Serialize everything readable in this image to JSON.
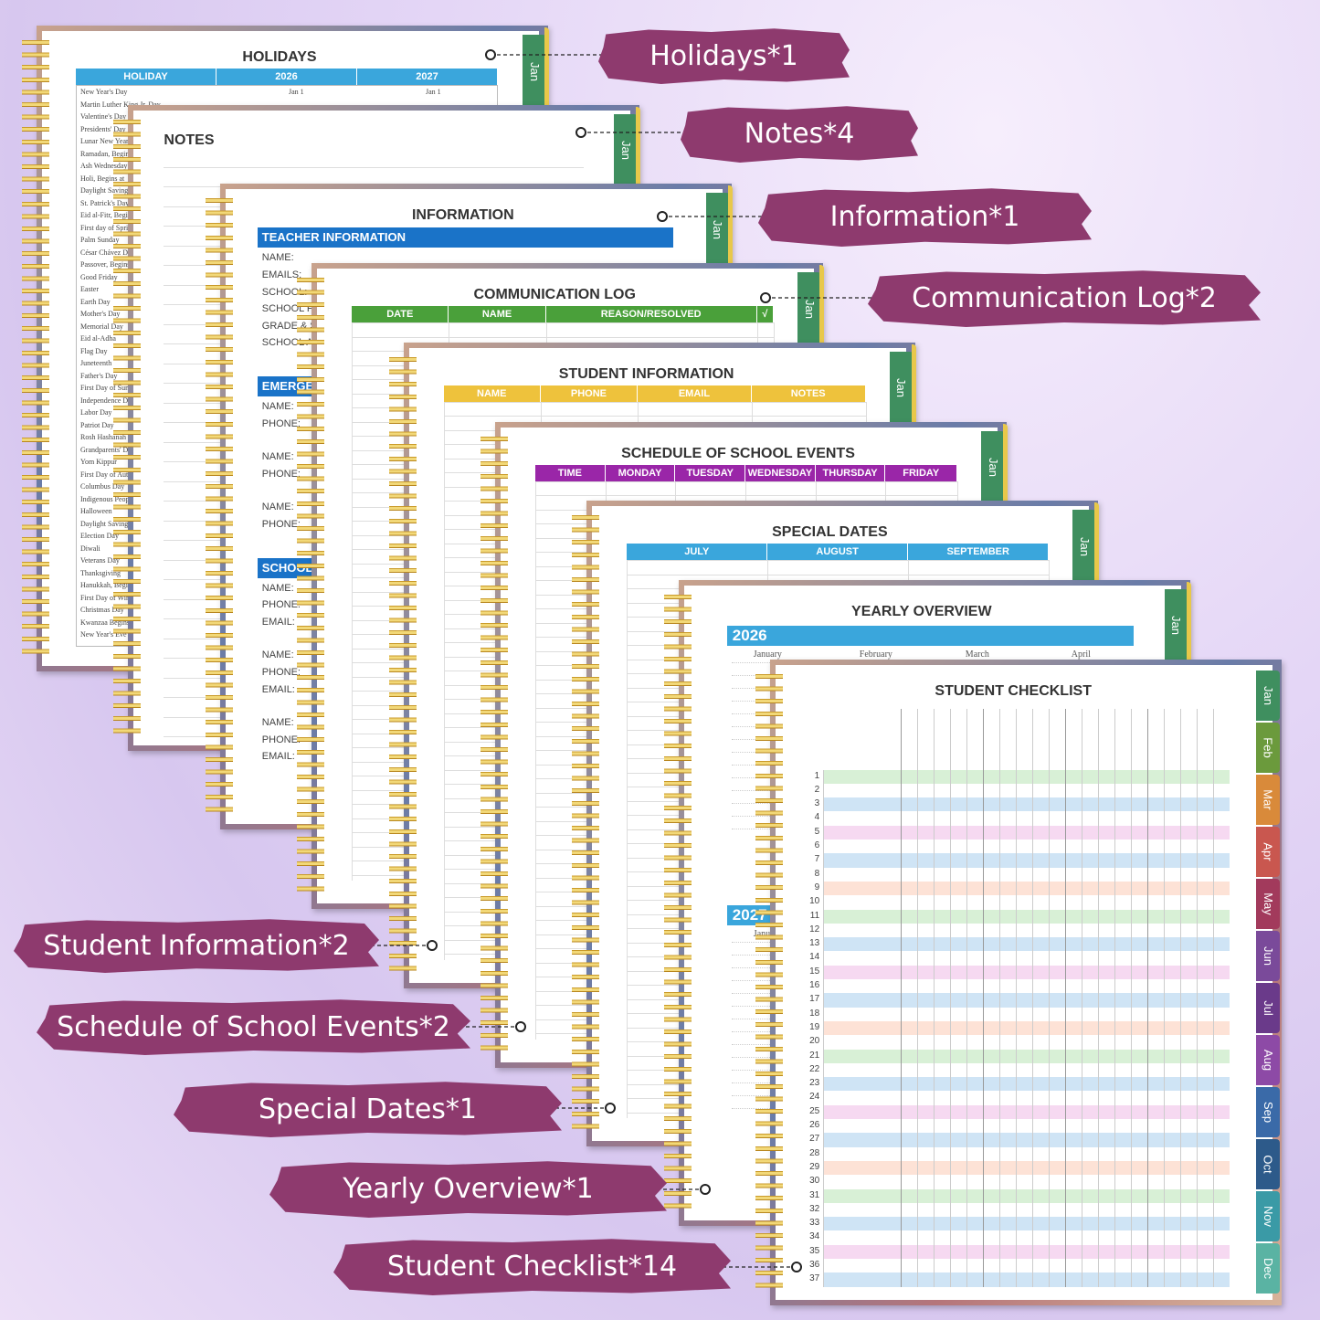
{
  "labels": [
    "Holidays*1",
    "Notes*4",
    "Information*1",
    "Communication Log*2",
    "Student Information*2",
    "Schedule of School Events*2",
    "Special Dates*1",
    "Yearly Overview*1",
    "Student Checklist*14"
  ],
  "pages": [
    {
      "kind": "holidays",
      "title": "HOLIDAYS",
      "tab": "Jan",
      "color": "#3aa6dc",
      "columns": [
        "HOLIDAY",
        "2026",
        "2027"
      ],
      "rows": [
        [
          "New Year's Day",
          "Jan 1",
          "Jan 1"
        ],
        [
          "Martin Luther King Jr. Day"
        ],
        [
          "Valentine's Day"
        ],
        [
          "Presidents' Day"
        ],
        [
          "Lunar New Year"
        ],
        [
          "Ramadan, Begins"
        ],
        [
          "Ash Wednesday"
        ],
        [
          "Holi, Begins at"
        ],
        [
          "Daylight Saving"
        ],
        [
          "St. Patrick's Day"
        ],
        [
          "Eid al-Fitr, Begins"
        ],
        [
          "First day of Spring"
        ],
        [
          "Palm Sunday"
        ],
        [
          "César Chávez Day"
        ],
        [
          "Passover, Begins"
        ],
        [
          "Good Friday"
        ],
        [
          "Easter"
        ],
        [
          "Earth Day"
        ],
        [
          "Mother's Day"
        ],
        [
          "Memorial Day"
        ],
        [
          "Eid al-Adha"
        ],
        [
          "Flag Day"
        ],
        [
          "Juneteenth"
        ],
        [
          "Father's Day"
        ],
        [
          "First Day of Summer"
        ],
        [
          "Independence Day"
        ],
        [
          "Labor Day"
        ],
        [
          "Patriot Day"
        ],
        [
          "Rosh Hashanah"
        ],
        [
          "Grandparents' Day"
        ],
        [
          "Yom Kippur"
        ],
        [
          "First Day of Autumn"
        ],
        [
          "Columbus Day"
        ],
        [
          "Indigenous Peoples' Day"
        ],
        [
          "Halloween"
        ],
        [
          "Daylight Saving"
        ],
        [
          "Election Day"
        ],
        [
          "Diwali"
        ],
        [
          "Veterans Day"
        ],
        [
          "Thanksgiving"
        ],
        [
          "Hanukkah, Begins"
        ],
        [
          "First Day of Winter"
        ],
        [
          "Christmas Day"
        ],
        [
          "Kwanzaa Begins"
        ],
        [
          "New Year's Eve"
        ]
      ]
    },
    {
      "kind": "notes",
      "title": "NOTES",
      "tab": "Jan"
    },
    {
      "kind": "info",
      "title": "INFORMATION",
      "tab": "Jan",
      "color": "#1a73c8",
      "sections": [
        {
          "heading": "TEACHER INFORMATION",
          "groups": [
            [
              "NAME:",
              "EMAILS:",
              "SCHOOL:",
              "SCHOOL PHONE:",
              "GRADE & SUBJECT:",
              "SCHOOL ADDRESS:"
            ]
          ]
        },
        {
          "heading": "EMERGENCY CONTACTS",
          "groups": [
            [
              "NAME:",
              "PHONE:"
            ],
            [
              "NAME:",
              "PHONE:"
            ],
            [
              "NAME:",
              "PHONE:"
            ]
          ]
        },
        {
          "heading": "SCHOOL CONTACTS",
          "groups": [
            [
              "NAME:",
              "PHONE:",
              "EMAIL:"
            ],
            [
              "NAME:",
              "PHONE:",
              "EMAIL:"
            ],
            [
              "NAME:",
              "PHONE:",
              "EMAIL:"
            ]
          ]
        }
      ]
    },
    {
      "kind": "table",
      "title": "COMMUNICATION LOG",
      "tab": "Jan",
      "color": "#4aa03a",
      "columns": [
        "DATE",
        "NAME",
        "REASON/RESOLVED",
        "√"
      ],
      "widths": [
        0.23,
        0.23,
        0.5,
        0.04
      ]
    },
    {
      "kind": "table",
      "title": "STUDENT INFORMATION",
      "tab": "Jan",
      "color": "#eec23c",
      "columns": [
        "NAME",
        "PHONE",
        "EMAIL",
        "NOTES"
      ],
      "widths": [
        0.23,
        0.23,
        0.27,
        0.27
      ]
    },
    {
      "kind": "table",
      "title": "SCHEDULE OF SCHOOL EVENTS",
      "tab": "Jan",
      "color": "#9a26a8",
      "columns": [
        "TIME",
        "MONDAY",
        "TUESDAY",
        "WEDNESDAY",
        "THURSDAY",
        "FRIDAY"
      ],
      "widths": [
        0.166,
        0.166,
        0.166,
        0.166,
        0.166,
        0.17
      ]
    },
    {
      "kind": "table",
      "title": "SPECIAL DATES",
      "tab": "Jan",
      "color": "#3aa6dc",
      "columns": [
        "JULY",
        "AUGUST",
        "SEPTEMBER"
      ],
      "widths": [
        0.333,
        0.333,
        0.334
      ]
    },
    {
      "kind": "yearly",
      "title": "YEARLY OVERVIEW",
      "tab": "Jan",
      "color": "#3aa6dc",
      "years": [
        "2026",
        "2027"
      ],
      "months": [
        "January",
        "February",
        "March",
        "April"
      ]
    },
    {
      "kind": "checklist",
      "title": "STUDENT CHECKLIST",
      "rows": [
        1,
        2,
        3,
        4,
        5,
        6,
        7,
        8,
        9,
        10,
        11,
        12,
        13,
        14,
        15,
        16,
        17,
        18,
        19,
        20,
        21,
        22,
        23,
        24,
        25,
        26,
        27,
        28,
        29,
        30,
        31,
        32,
        33,
        34,
        35,
        36,
        37
      ],
      "months": [
        {
          "name": "Jan",
          "color": "#3f8f5f"
        },
        {
          "name": "Feb",
          "color": "#6b9a3c"
        },
        {
          "name": "Mar",
          "color": "#d98a3a"
        },
        {
          "name": "Apr",
          "color": "#c9574f"
        },
        {
          "name": "May",
          "color": "#a23a5c"
        },
        {
          "name": "Jun",
          "color": "#7a4a9a"
        },
        {
          "name": "Jul",
          "color": "#6a3a8a"
        },
        {
          "name": "Aug",
          "color": "#8d4aa6"
        },
        {
          "name": "Sep",
          "color": "#3a6aa8"
        },
        {
          "name": "Oct",
          "color": "#2d5a8a"
        },
        {
          "name": "Nov",
          "color": "#3a9aa6"
        },
        {
          "name": "Dec",
          "color": "#5ab3a3"
        }
      ]
    }
  ]
}
